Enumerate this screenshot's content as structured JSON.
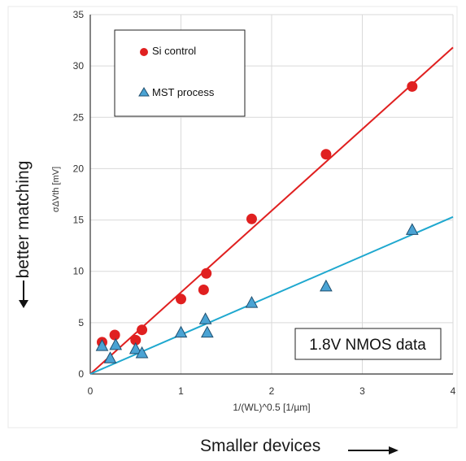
{
  "chart_data": {
    "type": "scatter",
    "xlabel": "1/(WL)^0.5 [1/µm]",
    "ylabel": "σΔVth [mV]",
    "xlim": [
      0,
      4
    ],
    "ylim": [
      0,
      35
    ],
    "x_ticks": [
      "0",
      "1",
      "2",
      "3",
      "4"
    ],
    "y_ticks": [
      "0",
      "5",
      "10",
      "15",
      "20",
      "25",
      "30",
      "35"
    ],
    "grid": true,
    "legend_position": "top-left",
    "annotation": "1.8V NMOS data",
    "series": [
      {
        "name": "Si control",
        "marker": "circle",
        "color": "#e02020",
        "points": [
          [
            0.13,
            3.1
          ],
          [
            0.27,
            3.8
          ],
          [
            0.5,
            3.3
          ],
          [
            0.57,
            4.3
          ],
          [
            1.0,
            7.3
          ],
          [
            1.25,
            8.2
          ],
          [
            1.28,
            9.8
          ],
          [
            1.78,
            15.1
          ],
          [
            2.6,
            21.4
          ],
          [
            3.55,
            28.0
          ]
        ],
        "fit": {
          "color": "#e02020",
          "x": [
            0,
            4
          ],
          "y": [
            0,
            31.8
          ]
        }
      },
      {
        "name": "MST process",
        "marker": "triangle",
        "color": "#4aa3d4",
        "points": [
          [
            0.13,
            2.7
          ],
          [
            0.22,
            1.5
          ],
          [
            0.28,
            2.8
          ],
          [
            0.5,
            2.4
          ],
          [
            0.57,
            2.0
          ],
          [
            1.0,
            4.0
          ],
          [
            1.27,
            5.3
          ],
          [
            1.29,
            4.0
          ],
          [
            1.78,
            6.9
          ],
          [
            2.6,
            8.5
          ],
          [
            3.55,
            14.0
          ]
        ],
        "fit": {
          "color": "#1fa8cf",
          "x": [
            0,
            4
          ],
          "y": [
            0,
            15.3
          ]
        }
      }
    ]
  },
  "outer_labels": {
    "y_direction": "better matching",
    "x_direction": "Smaller devices"
  }
}
